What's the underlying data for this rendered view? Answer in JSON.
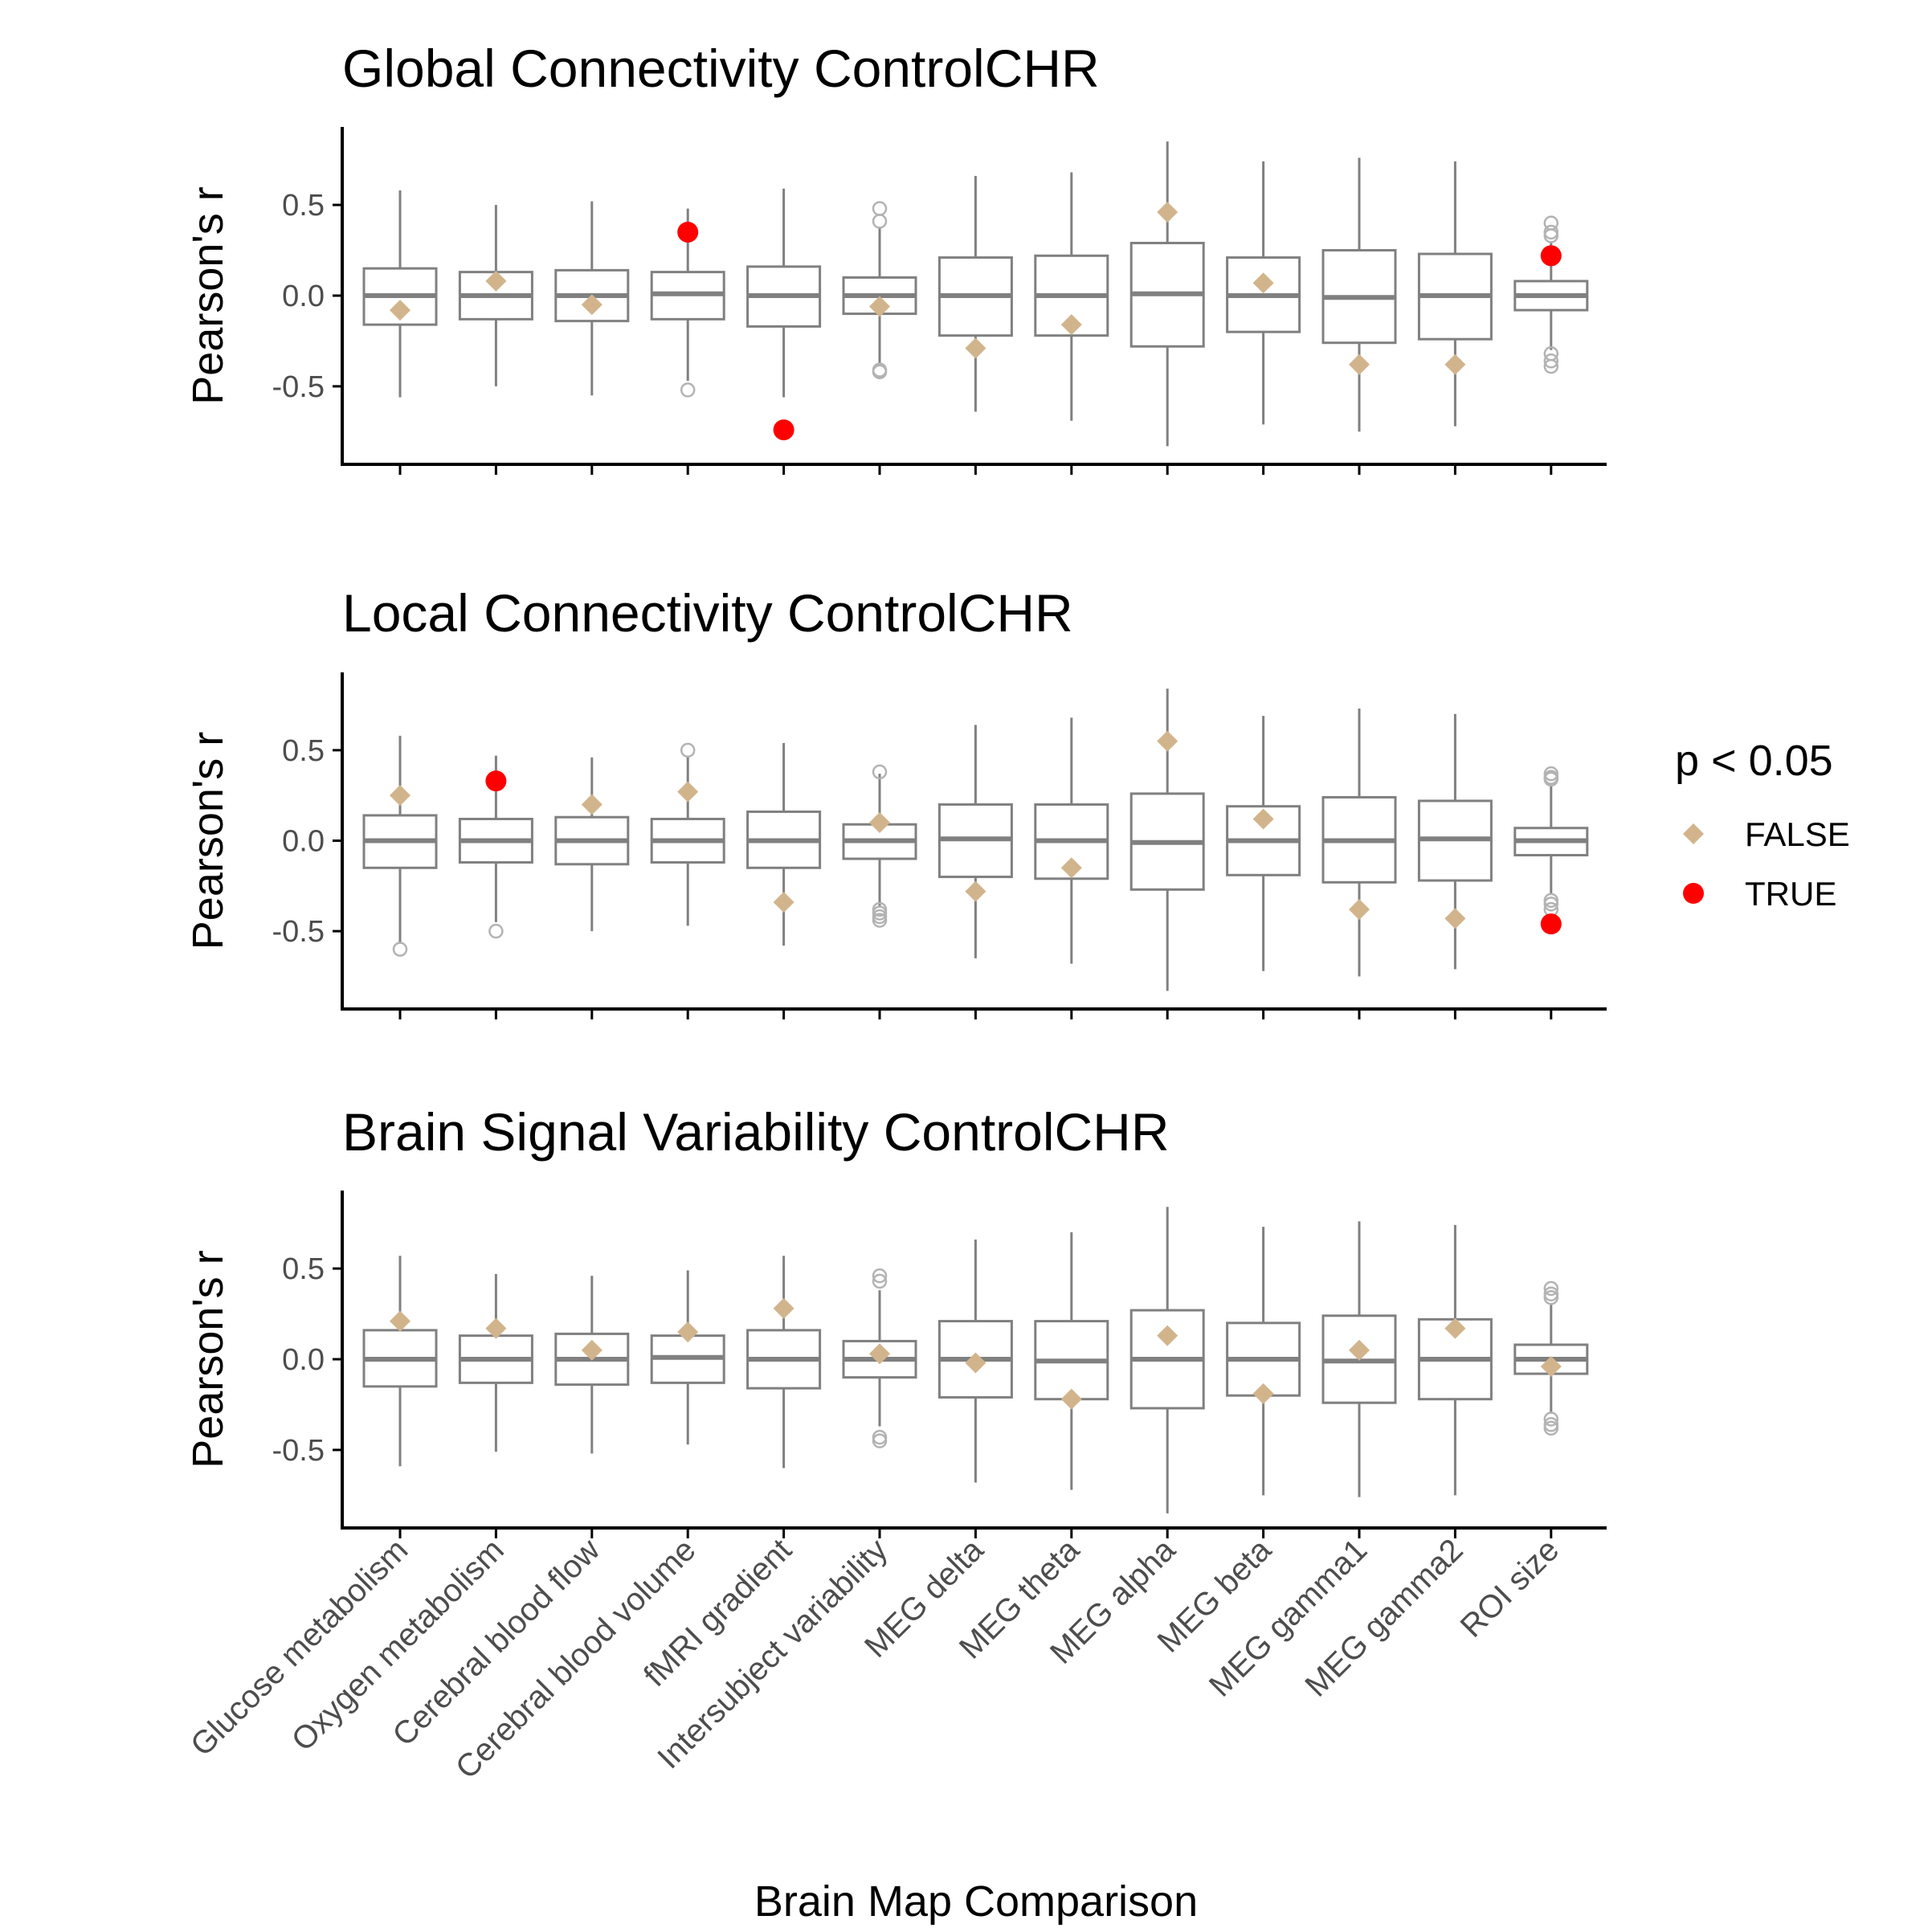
{
  "chart_data": {
    "type": "boxplot",
    "xlabel": "Brain Map Comparison",
    "categories": [
      "Glucose metabolism",
      "Oxygen metabolism",
      "Cerebral blood flow",
      "Cerebral blood volume",
      "fMRI gradient",
      "Intersubject variability",
      "MEG delta",
      "MEG theta",
      "MEG alpha",
      "MEG beta",
      "MEG gamma1",
      "MEG gamma2",
      "ROI size"
    ],
    "ylim": [
      -0.93,
      0.93
    ],
    "yticks": [
      -0.5,
      0.0,
      0.5
    ],
    "ytick_labels": [
      "-0.5",
      "0.0",
      "0.5"
    ],
    "legend": {
      "title": "p < 0.05",
      "position": "right",
      "entries": [
        {
          "label": "FALSE",
          "color": "#d2b48c",
          "shape": "diamond"
        },
        {
          "label": "TRUE",
          "color": "#ff0000",
          "shape": "circle"
        }
      ]
    },
    "colors": {
      "box": "#808080",
      "outlier": "#b3b3b3",
      "false": "#d2b48c",
      "true": "#ff0000",
      "axis": "#000000"
    },
    "panels": [
      {
        "title": "Global Connectivity ControlCHR",
        "ylabel": "Pearson's r",
        "boxes": [
          {
            "q1": -0.16,
            "median": 0.0,
            "q3": 0.15,
            "whisker_low": -0.56,
            "whisker_high": 0.58,
            "outliers": []
          },
          {
            "q1": -0.13,
            "median": 0.0,
            "q3": 0.13,
            "whisker_low": -0.5,
            "whisker_high": 0.5,
            "outliers": []
          },
          {
            "q1": -0.14,
            "median": 0.0,
            "q3": 0.14,
            "whisker_low": -0.55,
            "whisker_high": 0.52,
            "outliers": []
          },
          {
            "q1": -0.13,
            "median": 0.01,
            "q3": 0.13,
            "whisker_low": -0.47,
            "whisker_high": 0.48,
            "outliers": [
              -0.52
            ]
          },
          {
            "q1": -0.17,
            "median": 0.0,
            "q3": 0.16,
            "whisker_low": -0.56,
            "whisker_high": 0.59,
            "outliers": []
          },
          {
            "q1": -0.1,
            "median": 0.0,
            "q3": 0.1,
            "whisker_low": -0.38,
            "whisker_high": 0.38,
            "outliers": [
              0.48,
              0.41,
              -0.41,
              -0.42
            ]
          },
          {
            "q1": -0.22,
            "median": 0.0,
            "q3": 0.21,
            "whisker_low": -0.64,
            "whisker_high": 0.66,
            "outliers": []
          },
          {
            "q1": -0.22,
            "median": 0.0,
            "q3": 0.22,
            "whisker_low": -0.69,
            "whisker_high": 0.68,
            "outliers": []
          },
          {
            "q1": -0.28,
            "median": 0.01,
            "q3": 0.29,
            "whisker_low": -0.83,
            "whisker_high": 0.85,
            "outliers": []
          },
          {
            "q1": -0.2,
            "median": 0.0,
            "q3": 0.21,
            "whisker_low": -0.71,
            "whisker_high": 0.74,
            "outliers": []
          },
          {
            "q1": -0.26,
            "median": -0.01,
            "q3": 0.25,
            "whisker_low": -0.75,
            "whisker_high": 0.76,
            "outliers": []
          },
          {
            "q1": -0.24,
            "median": 0.0,
            "q3": 0.23,
            "whisker_low": -0.72,
            "whisker_high": 0.74,
            "outliers": []
          },
          {
            "q1": -0.08,
            "median": 0.0,
            "q3": 0.08,
            "whisker_low": -0.3,
            "whisker_high": 0.3,
            "outliers": [
              0.4,
              0.35,
              0.33,
              -0.32,
              -0.36,
              -0.39
            ]
          }
        ],
        "observed": [
          {
            "value": -0.08,
            "significant": false
          },
          {
            "value": 0.08,
            "significant": false
          },
          {
            "value": -0.05,
            "significant": false
          },
          {
            "value": 0.35,
            "significant": true
          },
          {
            "value": -0.74,
            "significant": true
          },
          {
            "value": -0.06,
            "significant": false
          },
          {
            "value": -0.29,
            "significant": false
          },
          {
            "value": -0.16,
            "significant": false
          },
          {
            "value": 0.46,
            "significant": false
          },
          {
            "value": 0.07,
            "significant": false
          },
          {
            "value": -0.38,
            "significant": false
          },
          {
            "value": -0.38,
            "significant": false
          },
          {
            "value": 0.22,
            "significant": true
          }
        ]
      },
      {
        "title": "Local Connectivity ControlCHR",
        "ylabel": "Pearson's r",
        "boxes": [
          {
            "q1": -0.15,
            "median": 0.0,
            "q3": 0.14,
            "whisker_low": -0.56,
            "whisker_high": 0.58,
            "outliers": [
              -0.6
            ]
          },
          {
            "q1": -0.12,
            "median": 0.0,
            "q3": 0.12,
            "whisker_low": -0.45,
            "whisker_high": 0.47,
            "outliers": [
              -0.5
            ]
          },
          {
            "q1": -0.13,
            "median": 0.0,
            "q3": 0.13,
            "whisker_low": -0.5,
            "whisker_high": 0.46,
            "outliers": []
          },
          {
            "q1": -0.12,
            "median": 0.0,
            "q3": 0.12,
            "whisker_low": -0.47,
            "whisker_high": 0.47,
            "outliers": [
              0.5
            ]
          },
          {
            "q1": -0.15,
            "median": 0.0,
            "q3": 0.16,
            "whisker_low": -0.58,
            "whisker_high": 0.54,
            "outliers": []
          },
          {
            "q1": -0.1,
            "median": 0.0,
            "q3": 0.09,
            "whisker_low": -0.36,
            "whisker_high": 0.37,
            "outliers": [
              0.38,
              -0.38,
              -0.4,
              -0.42,
              -0.44
            ]
          },
          {
            "q1": -0.2,
            "median": 0.01,
            "q3": 0.2,
            "whisker_low": -0.65,
            "whisker_high": 0.64,
            "outliers": []
          },
          {
            "q1": -0.21,
            "median": 0.0,
            "q3": 0.2,
            "whisker_low": -0.68,
            "whisker_high": 0.68,
            "outliers": []
          },
          {
            "q1": -0.27,
            "median": -0.01,
            "q3": 0.26,
            "whisker_low": -0.83,
            "whisker_high": 0.84,
            "outliers": []
          },
          {
            "q1": -0.19,
            "median": 0.0,
            "q3": 0.19,
            "whisker_low": -0.72,
            "whisker_high": 0.69,
            "outliers": []
          },
          {
            "q1": -0.23,
            "median": 0.0,
            "q3": 0.24,
            "whisker_low": -0.75,
            "whisker_high": 0.73,
            "outliers": []
          },
          {
            "q1": -0.22,
            "median": 0.01,
            "q3": 0.22,
            "whisker_low": -0.71,
            "whisker_high": 0.7,
            "outliers": []
          },
          {
            "q1": -0.08,
            "median": 0.0,
            "q3": 0.07,
            "whisker_low": -0.3,
            "whisker_high": 0.3,
            "outliers": [
              0.37,
              0.35,
              0.34,
              -0.33,
              -0.35,
              -0.38
            ]
          }
        ],
        "observed": [
          {
            "value": 0.25,
            "significant": false
          },
          {
            "value": 0.33,
            "significant": true
          },
          {
            "value": 0.2,
            "significant": false
          },
          {
            "value": 0.27,
            "significant": false
          },
          {
            "value": -0.34,
            "significant": false
          },
          {
            "value": 0.1,
            "significant": false
          },
          {
            "value": -0.28,
            "significant": false
          },
          {
            "value": -0.15,
            "significant": false
          },
          {
            "value": 0.55,
            "significant": false
          },
          {
            "value": 0.12,
            "significant": false
          },
          {
            "value": -0.38,
            "significant": false
          },
          {
            "value": -0.43,
            "significant": false
          },
          {
            "value": -0.46,
            "significant": true
          }
        ]
      },
      {
        "title": "Brain Signal Variability ControlCHR",
        "ylabel": "Pearson's r",
        "boxes": [
          {
            "q1": -0.15,
            "median": 0.0,
            "q3": 0.16,
            "whisker_low": -0.59,
            "whisker_high": 0.57,
            "outliers": []
          },
          {
            "q1": -0.13,
            "median": 0.0,
            "q3": 0.13,
            "whisker_low": -0.51,
            "whisker_high": 0.47,
            "outliers": []
          },
          {
            "q1": -0.14,
            "median": 0.0,
            "q3": 0.14,
            "whisker_low": -0.52,
            "whisker_high": 0.46,
            "outliers": []
          },
          {
            "q1": -0.13,
            "median": 0.01,
            "q3": 0.13,
            "whisker_low": -0.47,
            "whisker_high": 0.49,
            "outliers": []
          },
          {
            "q1": -0.16,
            "median": 0.0,
            "q3": 0.16,
            "whisker_low": -0.6,
            "whisker_high": 0.57,
            "outliers": []
          },
          {
            "q1": -0.1,
            "median": 0.0,
            "q3": 0.1,
            "whisker_low": -0.37,
            "whisker_high": 0.38,
            "outliers": [
              0.46,
              0.43,
              -0.43,
              -0.45
            ]
          },
          {
            "q1": -0.21,
            "median": 0.0,
            "q3": 0.21,
            "whisker_low": -0.68,
            "whisker_high": 0.66,
            "outliers": []
          },
          {
            "q1": -0.22,
            "median": -0.01,
            "q3": 0.21,
            "whisker_low": -0.72,
            "whisker_high": 0.7,
            "outliers": []
          },
          {
            "q1": -0.27,
            "median": 0.0,
            "q3": 0.27,
            "whisker_low": -0.85,
            "whisker_high": 0.84,
            "outliers": []
          },
          {
            "q1": -0.2,
            "median": 0.0,
            "q3": 0.2,
            "whisker_low": -0.75,
            "whisker_high": 0.73,
            "outliers": []
          },
          {
            "q1": -0.24,
            "median": -0.01,
            "q3": 0.24,
            "whisker_low": -0.76,
            "whisker_high": 0.76,
            "outliers": []
          },
          {
            "q1": -0.22,
            "median": 0.0,
            "q3": 0.22,
            "whisker_low": -0.75,
            "whisker_high": 0.74,
            "outliers": []
          },
          {
            "q1": -0.08,
            "median": 0.0,
            "q3": 0.08,
            "whisker_low": -0.3,
            "whisker_high": 0.3,
            "outliers": [
              0.39,
              0.36,
              0.34,
              -0.33,
              -0.36,
              -0.38
            ]
          }
        ],
        "observed": [
          {
            "value": 0.21,
            "significant": false
          },
          {
            "value": 0.17,
            "significant": false
          },
          {
            "value": 0.05,
            "significant": false
          },
          {
            "value": 0.15,
            "significant": false
          },
          {
            "value": 0.28,
            "significant": false
          },
          {
            "value": 0.03,
            "significant": false
          },
          {
            "value": -0.02,
            "significant": false
          },
          {
            "value": -0.22,
            "significant": false
          },
          {
            "value": 0.13,
            "significant": false
          },
          {
            "value": -0.19,
            "significant": false
          },
          {
            "value": 0.05,
            "significant": false
          },
          {
            "value": 0.17,
            "significant": false
          },
          {
            "value": -0.04,
            "significant": false
          }
        ]
      }
    ]
  }
}
